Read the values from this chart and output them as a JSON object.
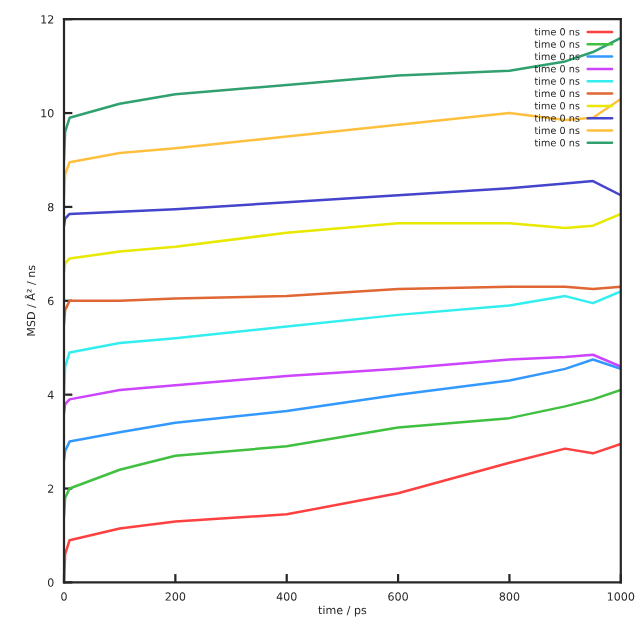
{
  "chart_data": {
    "type": "line",
    "xlabel": "time / ps",
    "ylabel": "MSD / Å² / ns",
    "x": [
      0,
      2,
      10,
      100,
      200,
      400,
      600,
      800,
      900,
      950,
      1000
    ],
    "xlim": [
      0,
      1000
    ],
    "xticks": [
      0,
      200,
      400,
      600,
      800,
      1000
    ],
    "ylim": [
      0,
      12
    ],
    "yticks": [
      0,
      2,
      4,
      6,
      8,
      10,
      12
    ],
    "grid": false,
    "legend": "top right",
    "marker": "none",
    "line_style": "solid",
    "series": [
      {
        "name": "time 0 ns",
        "color": "#ff4040",
        "values": [
          0,
          0.6,
          0.9,
          1.15,
          1.3,
          1.45,
          1.9,
          2.55,
          2.85,
          2.75,
          2.95
        ]
      },
      {
        "name": "time 0 ns",
        "color": "#40c040",
        "values": [
          1.4,
          1.8,
          2.0,
          2.4,
          2.7,
          2.9,
          3.3,
          3.5,
          3.75,
          3.9,
          4.1
        ]
      },
      {
        "name": "time 0 ns",
        "color": "#3399ff",
        "values": [
          2.6,
          2.8,
          3.0,
          3.2,
          3.4,
          3.65,
          4.0,
          4.3,
          4.55,
          4.75,
          4.55
        ]
      },
      {
        "name": "time 0 ns",
        "color": "#cc44ff",
        "values": [
          3.6,
          3.8,
          3.9,
          4.1,
          4.2,
          4.4,
          4.55,
          4.75,
          4.8,
          4.85,
          4.6
        ]
      },
      {
        "name": "time 0 ns",
        "color": "#33eeee",
        "values": [
          4.0,
          4.6,
          4.9,
          5.1,
          5.2,
          5.45,
          5.7,
          5.9,
          6.1,
          5.95,
          6.2
        ]
      },
      {
        "name": "time 0 ns",
        "color": "#e06633",
        "values": [
          5.5,
          5.8,
          6.0,
          6.0,
          6.05,
          6.1,
          6.25,
          6.3,
          6.3,
          6.25,
          6.3
        ]
      },
      {
        "name": "time 0 ns",
        "color": "#e8e800",
        "values": [
          6.6,
          6.8,
          6.9,
          7.05,
          7.15,
          7.45,
          7.65,
          7.65,
          7.55,
          7.6,
          7.85
        ]
      },
      {
        "name": "time 0 ns",
        "color": "#4444cc",
        "values": [
          7.6,
          7.75,
          7.85,
          7.9,
          7.95,
          8.1,
          8.25,
          8.4,
          8.5,
          8.55,
          8.25
        ]
      },
      {
        "name": "time 0 ns",
        "color": "#ffc040",
        "values": [
          8.2,
          8.7,
          8.95,
          9.15,
          9.25,
          9.5,
          9.75,
          10.0,
          9.85,
          9.9,
          10.3
        ]
      },
      {
        "name": "time 0 ns",
        "color": "#30a070",
        "values": [
          9.0,
          9.6,
          9.9,
          10.2,
          10.4,
          10.6,
          10.8,
          10.9,
          11.1,
          11.3,
          11.6
        ]
      }
    ]
  }
}
